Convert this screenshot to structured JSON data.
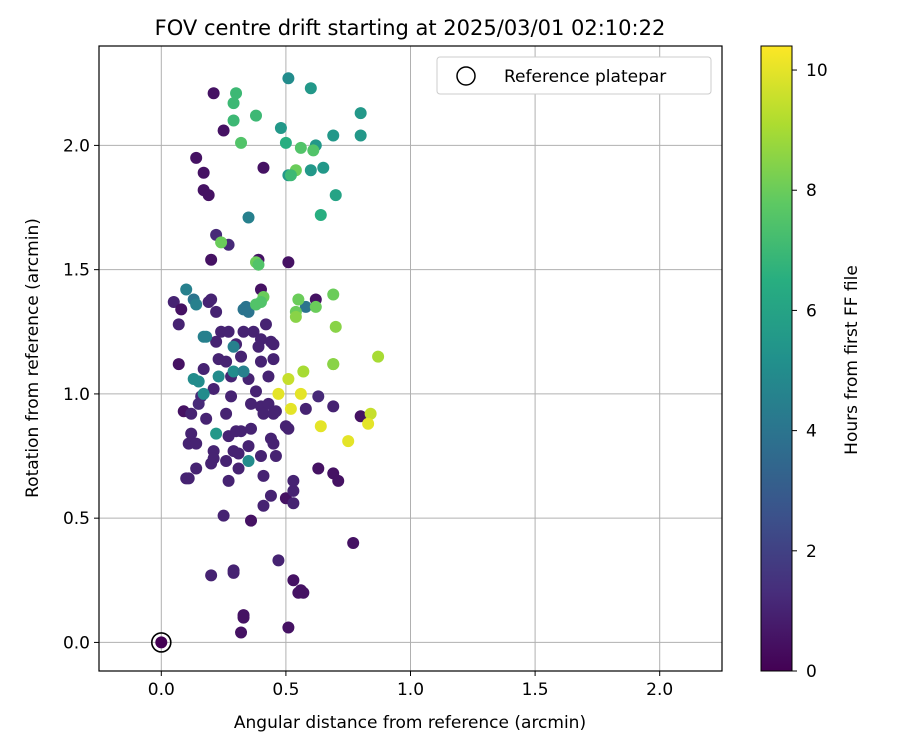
{
  "chart_data": {
    "type": "scatter",
    "title": "FOV centre drift starting at 2025/03/01 02:10:22",
    "xlabel": "Angular distance from reference (arcmin)",
    "ylabel": "Rotation from reference (arcmin)",
    "xlim": [
      -0.25,
      2.25
    ],
    "ylim": [
      -0.115,
      2.4
    ],
    "xticks": [
      "0.0",
      "0.5",
      "1.0",
      "1.5",
      "2.0"
    ],
    "yticks": [
      "0.0",
      "0.5",
      "1.0",
      "1.5",
      "2.0"
    ],
    "grid": true,
    "legend": {
      "placement": "top-right",
      "entries": [
        "Reference platepar"
      ]
    },
    "reference_point": {
      "x": 0.0,
      "y": 0.0
    },
    "colorbar": {
      "label": "Hours from first FF file",
      "range": [
        0,
        10.4
      ],
      "ticks": [
        "0",
        "2",
        "4",
        "6",
        "8",
        "10"
      ],
      "colormap": "viridis"
    },
    "points": [
      {
        "x": 0.21,
        "y": 2.21,
        "h": 0.5
      },
      {
        "x": 0.25,
        "y": 2.06,
        "h": 0.5
      },
      {
        "x": 0.14,
        "y": 1.95,
        "h": 0.5
      },
      {
        "x": 0.17,
        "y": 1.89,
        "h": 0.5
      },
      {
        "x": 0.17,
        "y": 1.82,
        "h": 0.5
      },
      {
        "x": 0.19,
        "y": 1.8,
        "h": 0.5
      },
      {
        "x": 0.41,
        "y": 1.91,
        "h": 0.5
      },
      {
        "x": 0.22,
        "y": 1.64,
        "h": 1.2
      },
      {
        "x": 0.27,
        "y": 1.6,
        "h": 1.2
      },
      {
        "x": 0.2,
        "y": 1.54,
        "h": 0.5
      },
      {
        "x": 0.39,
        "y": 1.54,
        "h": 0.5
      },
      {
        "x": 0.51,
        "y": 1.53,
        "h": 0.5
      },
      {
        "x": 0.05,
        "y": 1.37,
        "h": 1.0
      },
      {
        "x": 0.08,
        "y": 1.34,
        "h": 0.5
      },
      {
        "x": 0.07,
        "y": 1.28,
        "h": 1.0
      },
      {
        "x": 0.19,
        "y": 1.37,
        "h": 1.0
      },
      {
        "x": 0.2,
        "y": 1.38,
        "h": 1.0
      },
      {
        "x": 0.22,
        "y": 1.33,
        "h": 1.0
      },
      {
        "x": 0.4,
        "y": 1.42,
        "h": 0.5
      },
      {
        "x": 0.62,
        "y": 1.38,
        "h": 0.5
      },
      {
        "x": 0.24,
        "y": 1.25,
        "h": 1.0
      },
      {
        "x": 0.27,
        "y": 1.25,
        "h": 1.0
      },
      {
        "x": 0.33,
        "y": 1.25,
        "h": 1.0
      },
      {
        "x": 0.37,
        "y": 1.25,
        "h": 1.0
      },
      {
        "x": 0.4,
        "y": 1.22,
        "h": 1.0
      },
      {
        "x": 0.42,
        "y": 1.28,
        "h": 1.0
      },
      {
        "x": 0.22,
        "y": 1.21,
        "h": 1.0
      },
      {
        "x": 0.3,
        "y": 1.2,
        "h": 1.0
      },
      {
        "x": 0.44,
        "y": 1.21,
        "h": 1.0
      },
      {
        "x": 0.45,
        "y": 1.2,
        "h": 1.0
      },
      {
        "x": 0.39,
        "y": 1.19,
        "h": 1.0
      },
      {
        "x": 0.07,
        "y": 1.12,
        "h": 0.5
      },
      {
        "x": 0.17,
        "y": 1.1,
        "h": 1.0
      },
      {
        "x": 0.23,
        "y": 1.14,
        "h": 1.0
      },
      {
        "x": 0.26,
        "y": 1.13,
        "h": 1.0
      },
      {
        "x": 0.32,
        "y": 1.15,
        "h": 1.0
      },
      {
        "x": 0.4,
        "y": 1.13,
        "h": 1.0
      },
      {
        "x": 0.45,
        "y": 1.14,
        "h": 1.0
      },
      {
        "x": 0.28,
        "y": 1.07,
        "h": 1.0
      },
      {
        "x": 0.35,
        "y": 1.06,
        "h": 1.0
      },
      {
        "x": 0.43,
        "y": 1.07,
        "h": 1.0
      },
      {
        "x": 0.21,
        "y": 1.02,
        "h": 1.0
      },
      {
        "x": 0.38,
        "y": 1.01,
        "h": 1.0
      },
      {
        "x": 0.15,
        "y": 0.96,
        "h": 1.2
      },
      {
        "x": 0.16,
        "y": 0.99,
        "h": 1.2
      },
      {
        "x": 0.28,
        "y": 0.99,
        "h": 1.0
      },
      {
        "x": 0.36,
        "y": 0.96,
        "h": 1.0
      },
      {
        "x": 0.4,
        "y": 0.95,
        "h": 1.0
      },
      {
        "x": 0.43,
        "y": 0.96,
        "h": 1.0
      },
      {
        "x": 0.09,
        "y": 0.93,
        "h": 0.5
      },
      {
        "x": 0.12,
        "y": 0.92,
        "h": 1.0
      },
      {
        "x": 0.18,
        "y": 0.9,
        "h": 1.0
      },
      {
        "x": 0.26,
        "y": 0.92,
        "h": 1.0
      },
      {
        "x": 0.41,
        "y": 0.92,
        "h": 1.0
      },
      {
        "x": 0.45,
        "y": 0.92,
        "h": 1.0
      },
      {
        "x": 0.46,
        "y": 0.93,
        "h": 1.0
      },
      {
        "x": 0.5,
        "y": 0.87,
        "h": 1.0
      },
      {
        "x": 0.51,
        "y": 0.86,
        "h": 1.0
      },
      {
        "x": 0.58,
        "y": 0.94,
        "h": 1.0
      },
      {
        "x": 0.63,
        "y": 0.99,
        "h": 1.2
      },
      {
        "x": 0.69,
        "y": 0.95,
        "h": 1.0
      },
      {
        "x": 0.8,
        "y": 0.91,
        "h": 0.5
      },
      {
        "x": 0.12,
        "y": 0.84,
        "h": 1.0
      },
      {
        "x": 0.11,
        "y": 0.8,
        "h": 1.0
      },
      {
        "x": 0.14,
        "y": 0.8,
        "h": 1.0
      },
      {
        "x": 0.27,
        "y": 0.83,
        "h": 1.0
      },
      {
        "x": 0.3,
        "y": 0.85,
        "h": 1.0
      },
      {
        "x": 0.32,
        "y": 0.85,
        "h": 1.0
      },
      {
        "x": 0.36,
        "y": 0.86,
        "h": 1.0
      },
      {
        "x": 0.44,
        "y": 0.82,
        "h": 1.0
      },
      {
        "x": 0.45,
        "y": 0.8,
        "h": 1.0
      },
      {
        "x": 0.21,
        "y": 0.77,
        "h": 1.0
      },
      {
        "x": 0.21,
        "y": 0.74,
        "h": 1.0
      },
      {
        "x": 0.29,
        "y": 0.77,
        "h": 1.0
      },
      {
        "x": 0.31,
        "y": 0.76,
        "h": 1.0
      },
      {
        "x": 0.35,
        "y": 0.79,
        "h": 1.0
      },
      {
        "x": 0.4,
        "y": 0.75,
        "h": 1.0
      },
      {
        "x": 0.46,
        "y": 0.75,
        "h": 1.0
      },
      {
        "x": 0.14,
        "y": 0.7,
        "h": 1.0
      },
      {
        "x": 0.2,
        "y": 0.72,
        "h": 1.0
      },
      {
        "x": 0.26,
        "y": 0.73,
        "h": 1.0
      },
      {
        "x": 0.31,
        "y": 0.7,
        "h": 1.0
      },
      {
        "x": 0.1,
        "y": 0.66,
        "h": 1.0
      },
      {
        "x": 0.11,
        "y": 0.66,
        "h": 1.0
      },
      {
        "x": 0.27,
        "y": 0.65,
        "h": 1.0
      },
      {
        "x": 0.41,
        "y": 0.67,
        "h": 1.0
      },
      {
        "x": 0.63,
        "y": 0.7,
        "h": 0.5
      },
      {
        "x": 0.69,
        "y": 0.68,
        "h": 0.5
      },
      {
        "x": 0.71,
        "y": 0.65,
        "h": 0.5
      },
      {
        "x": 0.44,
        "y": 0.59,
        "h": 1.0
      },
      {
        "x": 0.5,
        "y": 0.58,
        "h": 0.5
      },
      {
        "x": 0.53,
        "y": 0.61,
        "h": 1.0
      },
      {
        "x": 0.53,
        "y": 0.65,
        "h": 1.0
      },
      {
        "x": 0.53,
        "y": 0.56,
        "h": 1.0
      },
      {
        "x": 0.41,
        "y": 0.55,
        "h": 1.0
      },
      {
        "x": 0.25,
        "y": 0.51,
        "h": 1.0
      },
      {
        "x": 0.36,
        "y": 0.49,
        "h": 0.5
      },
      {
        "x": 0.77,
        "y": 0.4,
        "h": 0.5
      },
      {
        "x": 0.47,
        "y": 0.33,
        "h": 1.0
      },
      {
        "x": 0.2,
        "y": 0.27,
        "h": 1.0
      },
      {
        "x": 0.29,
        "y": 0.29,
        "h": 1.0
      },
      {
        "x": 0.29,
        "y": 0.28,
        "h": 1.0
      },
      {
        "x": 0.53,
        "y": 0.25,
        "h": 0.5
      },
      {
        "x": 0.56,
        "y": 0.21,
        "h": 0.5
      },
      {
        "x": 0.57,
        "y": 0.2,
        "h": 0.5
      },
      {
        "x": 0.55,
        "y": 0.2,
        "h": 0.5
      },
      {
        "x": 0.33,
        "y": 0.11,
        "h": 0.5
      },
      {
        "x": 0.33,
        "y": 0.1,
        "h": 0.5
      },
      {
        "x": 0.32,
        "y": 0.04,
        "h": 0.5
      },
      {
        "x": 0.51,
        "y": 0.06,
        "h": 0.5
      },
      {
        "x": 0.34,
        "y": 1.35,
        "h": 4.0
      },
      {
        "x": 0.33,
        "y": 1.34,
        "h": 4.0
      },
      {
        "x": 0.35,
        "y": 1.33,
        "h": 4.0
      },
      {
        "x": 0.58,
        "y": 1.35,
        "h": 4.0
      },
      {
        "x": 0.1,
        "y": 1.42,
        "h": 4.5
      },
      {
        "x": 0.13,
        "y": 1.38,
        "h": 4.0
      },
      {
        "x": 0.14,
        "y": 1.36,
        "h": 4.5
      },
      {
        "x": 0.18,
        "y": 1.23,
        "h": 4.5
      },
      {
        "x": 0.17,
        "y": 1.23,
        "h": 4.5
      },
      {
        "x": 0.29,
        "y": 1.19,
        "h": 4.5
      },
      {
        "x": 0.13,
        "y": 1.06,
        "h": 5.0
      },
      {
        "x": 0.15,
        "y": 1.05,
        "h": 5.0
      },
      {
        "x": 0.23,
        "y": 1.07,
        "h": 5.0
      },
      {
        "x": 0.29,
        "y": 1.09,
        "h": 5.0
      },
      {
        "x": 0.33,
        "y": 1.09,
        "h": 4.5
      },
      {
        "x": 0.17,
        "y": 1.0,
        "h": 5.0
      },
      {
        "x": 0.22,
        "y": 0.84,
        "h": 5.5
      },
      {
        "x": 0.35,
        "y": 0.73,
        "h": 5.0
      },
      {
        "x": 0.35,
        "y": 1.71,
        "h": 4.5
      },
      {
        "x": 0.51,
        "y": 2.27,
        "h": 5.0
      },
      {
        "x": 0.6,
        "y": 2.23,
        "h": 5.5
      },
      {
        "x": 0.8,
        "y": 2.13,
        "h": 5.5
      },
      {
        "x": 0.48,
        "y": 2.07,
        "h": 5.5
      },
      {
        "x": 0.69,
        "y": 2.04,
        "h": 5.5
      },
      {
        "x": 0.8,
        "y": 2.04,
        "h": 5.5
      },
      {
        "x": 0.62,
        "y": 2.0,
        "h": 5.5
      },
      {
        "x": 0.65,
        "y": 1.91,
        "h": 5.5
      },
      {
        "x": 0.51,
        "y": 1.88,
        "h": 5.5
      },
      {
        "x": 0.6,
        "y": 1.9,
        "h": 5.5
      },
      {
        "x": 0.7,
        "y": 1.8,
        "h": 6.0
      },
      {
        "x": 0.64,
        "y": 1.72,
        "h": 6.5
      },
      {
        "x": 0.5,
        "y": 2.01,
        "h": 6.5
      },
      {
        "x": 0.56,
        "y": 1.99,
        "h": 7.5
      },
      {
        "x": 0.3,
        "y": 2.21,
        "h": 7.0
      },
      {
        "x": 0.29,
        "y": 2.17,
        "h": 7.0
      },
      {
        "x": 0.29,
        "y": 2.1,
        "h": 7.0
      },
      {
        "x": 0.38,
        "y": 2.12,
        "h": 7.0
      },
      {
        "x": 0.61,
        "y": 1.98,
        "h": 7.5
      },
      {
        "x": 0.32,
        "y": 2.01,
        "h": 7.5
      },
      {
        "x": 0.54,
        "y": 1.9,
        "h": 8.0
      },
      {
        "x": 0.52,
        "y": 1.88,
        "h": 7.0
      },
      {
        "x": 0.24,
        "y": 1.61,
        "h": 8.0
      },
      {
        "x": 0.38,
        "y": 1.53,
        "h": 8.0
      },
      {
        "x": 0.39,
        "y": 1.52,
        "h": 7.5
      },
      {
        "x": 0.38,
        "y": 1.36,
        "h": 7.5
      },
      {
        "x": 0.41,
        "y": 1.39,
        "h": 8.0
      },
      {
        "x": 0.4,
        "y": 1.37,
        "h": 7.5
      },
      {
        "x": 0.55,
        "y": 1.38,
        "h": 8.0
      },
      {
        "x": 0.54,
        "y": 1.33,
        "h": 8.0
      },
      {
        "x": 0.54,
        "y": 1.31,
        "h": 8.5
      },
      {
        "x": 0.62,
        "y": 1.35,
        "h": 8.0
      },
      {
        "x": 0.69,
        "y": 1.4,
        "h": 8.0
      },
      {
        "x": 0.7,
        "y": 1.27,
        "h": 8.5
      },
      {
        "x": 0.69,
        "y": 1.12,
        "h": 9.0
      },
      {
        "x": 0.69,
        "y": 1.12,
        "h": 8.5
      },
      {
        "x": 0.87,
        "y": 1.15,
        "h": 9.0
      },
      {
        "x": 0.57,
        "y": 1.09,
        "h": 9.0
      },
      {
        "x": 0.51,
        "y": 1.06,
        "h": 9.5
      },
      {
        "x": 0.47,
        "y": 1.0,
        "h": 10.0
      },
      {
        "x": 0.56,
        "y": 1.0,
        "h": 10.0
      },
      {
        "x": 0.52,
        "y": 0.94,
        "h": 10.0
      },
      {
        "x": 0.84,
        "y": 0.92,
        "h": 9.5
      },
      {
        "x": 0.83,
        "y": 0.88,
        "h": 10.0
      },
      {
        "x": 0.64,
        "y": 0.87,
        "h": 10.0
      },
      {
        "x": 0.75,
        "y": 0.81,
        "h": 10.0
      }
    ]
  }
}
